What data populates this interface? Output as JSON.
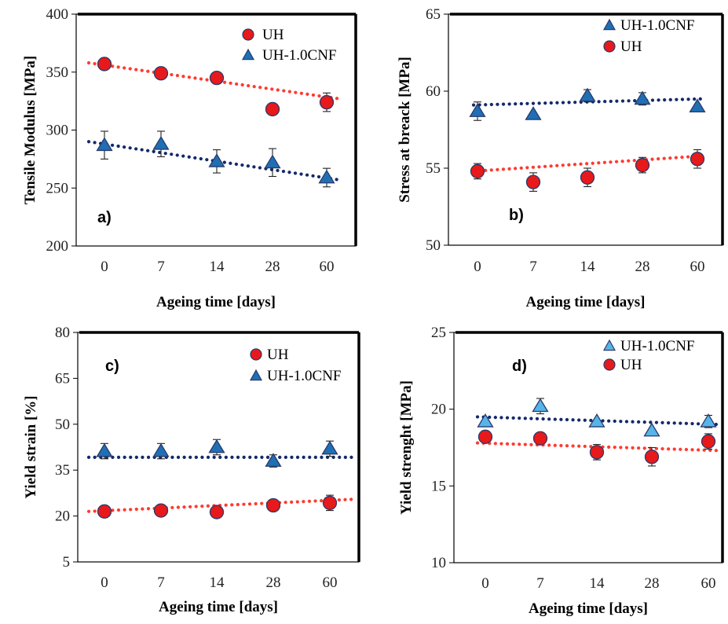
{
  "chart_data": [
    {
      "type": "scatter",
      "panel_label": "a)",
      "categories": [
        "0",
        "7",
        "14",
        "28",
        "60"
      ],
      "xlabel": "Ageing time [days]",
      "ylabel": "Tensile Modulus [MPa]",
      "ylim": [
        200,
        400
      ],
      "yticks": [
        "200",
        "250",
        "300",
        "350",
        "400"
      ],
      "legend_position": "top-right",
      "series": [
        {
          "name": "UH",
          "marker": "circle",
          "color": "#e8191a",
          "values": [
            357,
            349,
            345,
            318,
            324
          ],
          "errors": [
            0,
            0,
            0,
            0,
            8
          ],
          "trend": [
            358,
            327
          ]
        },
        {
          "name": "UH-1.0CNF",
          "marker": "triangle",
          "color": "#1f6fb4",
          "values": [
            287,
            288,
            273,
            272,
            259
          ],
          "errors": [
            12,
            11,
            10,
            12,
            8
          ],
          "trend": [
            290,
            257
          ]
        }
      ],
      "legend_order": [
        0,
        1
      ]
    },
    {
      "type": "scatter",
      "panel_label": "b)",
      "categories": [
        "0",
        "7",
        "14",
        "28",
        "60"
      ],
      "xlabel": "Ageing time [days]",
      "ylabel": "Stress at breack [MPa]",
      "ylim": [
        50,
        65
      ],
      "yticks": [
        "50",
        "55",
        "60",
        "65"
      ],
      "legend_position": "top-right",
      "series": [
        {
          "name": "UH",
          "marker": "circle",
          "color": "#e8191a",
          "values": [
            54.8,
            54.1,
            54.4,
            55.2,
            55.6
          ],
          "errors": [
            0.5,
            0.6,
            0.6,
            0.5,
            0.6
          ],
          "trend": [
            54.8,
            55.8
          ]
        },
        {
          "name": "UH-1.0CNF",
          "marker": "triangle",
          "color": "#1f6fb4",
          "values": [
            58.7,
            58.5,
            59.7,
            59.5,
            59.0
          ],
          "errors": [
            0.6,
            0,
            0.4,
            0.4,
            0
          ],
          "trend": [
            59.1,
            59.5
          ]
        }
      ],
      "legend_order": [
        1,
        0
      ]
    },
    {
      "type": "scatter",
      "panel_label": "c)",
      "categories": [
        "0",
        "7",
        "14",
        "28",
        "60"
      ],
      "xlabel": "Ageing time [days]",
      "ylabel": "Yield strain [%]",
      "ylim": [
        5,
        80
      ],
      "yticks": [
        "5",
        "20",
        "35",
        "50",
        "65",
        "80"
      ],
      "legend_position": "top-right",
      "series": [
        {
          "name": "UH",
          "marker": "circle",
          "color": "#e8191a",
          "values": [
            21.5,
            21.8,
            21.3,
            23.5,
            24.3
          ],
          "errors": [
            1,
            1,
            1,
            1,
            2.5
          ],
          "trend": [
            21.5,
            25.5
          ]
        },
        {
          "name": "UH-1.0CNF",
          "marker": "triangle",
          "color": "#1f6fb4",
          "values": [
            41.2,
            41.2,
            42.5,
            38.0,
            42.0
          ],
          "errors": [
            2.5,
            2.5,
            2.5,
            2,
            2.5
          ],
          "trend": [
            39.2,
            39.2
          ]
        }
      ],
      "legend_order": [
        0,
        1
      ]
    },
    {
      "type": "scatter",
      "panel_label": "d)",
      "categories": [
        "0",
        "7",
        "14",
        "28",
        "60"
      ],
      "xlabel": "Ageing time [days]",
      "ylabel": "Yield strenght [MPa]",
      "ylim": [
        10,
        25
      ],
      "yticks": [
        "10",
        "15",
        "20",
        "25"
      ],
      "legend_position": "top-right",
      "series": [
        {
          "name": "UH",
          "marker": "circle",
          "color": "#e8191a",
          "values": [
            18.2,
            18.1,
            17.2,
            16.9,
            17.9
          ],
          "errors": [
            0,
            0,
            0.5,
            0.6,
            0.5
          ],
          "trend": [
            17.8,
            17.3
          ]
        },
        {
          "name": "UH-1.0CNF",
          "marker": "triangle",
          "color": "#56b4e9",
          "values": [
            19.2,
            20.2,
            19.2,
            18.6,
            19.2
          ],
          "errors": [
            0,
            0.5,
            0,
            0,
            0.4
          ],
          "trend": [
            19.5,
            19.0
          ]
        }
      ],
      "legend_order": [
        1,
        0
      ]
    }
  ],
  "colors": {
    "uh_trend": "#ff3b30",
    "cnf_trend": "#14296b",
    "marker_edge": "#2a3a6a"
  }
}
